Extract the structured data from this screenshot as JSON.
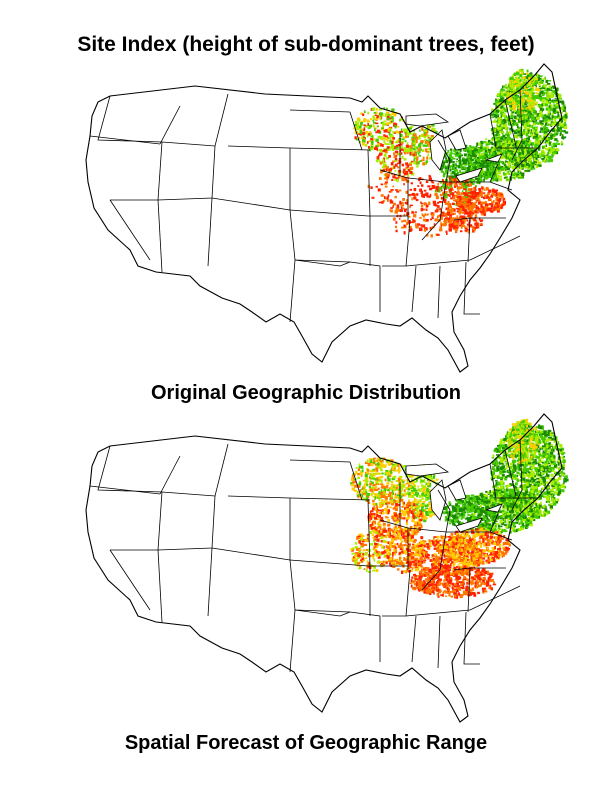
{
  "title": "Site Index (height of sub-dominant trees, feet)",
  "maps": [
    {
      "caption": "Original Geographic Distribution",
      "variant": "original"
    },
    {
      "caption": "Spatial Forecast of Geographic Range",
      "variant": "forecast"
    }
  ],
  "colors": {
    "low": "#ff2200",
    "mid_low": "#ff7700",
    "mid": "#ffcc00",
    "mid_high": "#aaee00",
    "high": "#44cc00",
    "very_high": "#1a8a00",
    "boundary": "#000000",
    "background": "#ffffff"
  }
}
